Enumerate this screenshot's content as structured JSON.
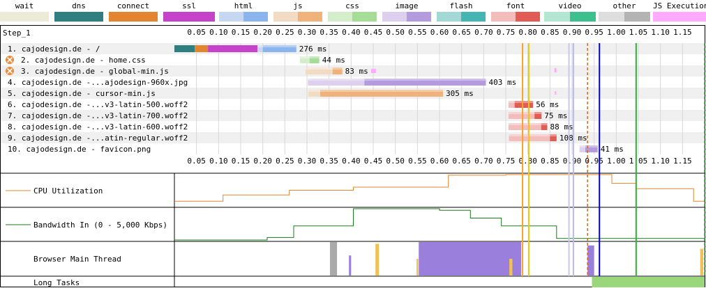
{
  "legend": [
    {
      "label": "wait",
      "colors": [
        "#ecebd7",
        "#ecebd7"
      ]
    },
    {
      "label": "dns",
      "colors": [
        "#2f7f80",
        "#2f7f80"
      ]
    },
    {
      "label": "connect",
      "colors": [
        "#e38431",
        "#e38431"
      ]
    },
    {
      "label": "ssl",
      "colors": [
        "#c543c8",
        "#c543c8"
      ]
    },
    {
      "label": "html",
      "colors": [
        "#c6d7f1",
        "#8db5ed"
      ]
    },
    {
      "label": "js",
      "colors": [
        "#f1dbc2",
        "#eeb27a"
      ]
    },
    {
      "label": "css",
      "colors": [
        "#d4eecb",
        "#a5dd97"
      ]
    },
    {
      "label": "image",
      "colors": [
        "#dcd0ee",
        "#b39bdd"
      ]
    },
    {
      "label": "flash",
      "colors": [
        "#a3d8d7",
        "#45b5b3"
      ]
    },
    {
      "label": "font",
      "colors": [
        "#f3bdbb",
        "#e25c56"
      ]
    },
    {
      "label": "video",
      "colors": [
        "#b3e7d1",
        "#3dbf8e"
      ]
    },
    {
      "label": "other",
      "colors": [
        "#dddddd",
        "#b4b4b4"
      ]
    },
    {
      "label": "JS Execution",
      "colors": [
        "#ffaaff",
        "#ffaaff"
      ]
    }
  ],
  "chart_data": {
    "type": "waterfall",
    "step_label": "Step_1",
    "x_unit": "s",
    "x_range": [
      0,
      1.2
    ],
    "ticks": [
      "0.05",
      "0.10",
      "0.15",
      "0.20",
      "0.25",
      "0.30",
      "0.35",
      "0.40",
      "0.45",
      "0.50",
      "0.55",
      "0.60",
      "0.65",
      "0.70",
      "0.75",
      "0.80",
      "0.85",
      "0.90",
      "0.95",
      "1.00",
      "1.05",
      "1.10",
      "1.15"
    ],
    "requests": [
      {
        "label": "1. cajodesign.de - /",
        "type": "html",
        "blocked": false,
        "phases": {
          "dns": [
            0.0,
            0.046
          ],
          "connect": [
            0.046,
            0.076
          ],
          "ssl": [
            0.076,
            0.188
          ]
        },
        "start": 0.0,
        "ttfb_end": 0.2,
        "end": 0.276,
        "duration_label": "276 ms"
      },
      {
        "label": "2. cajodesign.de - home.css",
        "type": "css",
        "blocked": true,
        "start": 0.284,
        "ttfb_end": 0.306,
        "end": 0.328,
        "duration_label": "44 ms"
      },
      {
        "label": "3. cajodesign.de - global-min.js",
        "type": "js",
        "blocked": true,
        "start": 0.297,
        "ttfb_end": 0.358,
        "end": 0.38,
        "duration_label": "83 ms",
        "js_exec": [
          [
            0.445,
            0.456
          ]
        ]
      },
      {
        "label": "4. cajodesign.de -...ajodesign-960x.jpg",
        "type": "image",
        "blocked": false,
        "start": 0.302,
        "ttfb_end": 0.43,
        "end": 0.705,
        "duration_label": "403 ms"
      },
      {
        "label": "5. cajodesign.de - cursor-min.js",
        "type": "js",
        "blocked": false,
        "start": 0.303,
        "ttfb_end": 0.33,
        "end": 0.608,
        "duration_label": "305 ms"
      },
      {
        "label": "6. cajodesign.de -...v3-latin-500.woff2",
        "type": "font",
        "blocked": false,
        "start": 0.756,
        "ttfb_end": 0.77,
        "end": 0.812,
        "duration_label": "56 ms"
      },
      {
        "label": "7. cajodesign.de -...v3-latin-700.woff2",
        "type": "font",
        "blocked": false,
        "start": 0.756,
        "ttfb_end": 0.815,
        "end": 0.831,
        "duration_label": "75 ms"
      },
      {
        "label": "8. cajodesign.de -...v3-latin-600.woff2",
        "type": "font",
        "blocked": false,
        "start": 0.756,
        "ttfb_end": 0.83,
        "end": 0.844,
        "duration_label": "88 ms"
      },
      {
        "label": "9. cajodesign.de -...atin-regular.woff2",
        "type": "font",
        "blocked": false,
        "start": 0.757,
        "ttfb_end": 0.85,
        "end": 0.865,
        "duration_label": "108 ms"
      },
      {
        "label": "10. cajodesign.de - favicon.png",
        "type": "image",
        "blocked": false,
        "start": 0.917,
        "ttfb_end": 0.93,
        "end": 0.958,
        "duration_label": "41 ms"
      }
    ],
    "markers": [
      {
        "time": 0.788,
        "color": "#f5a623",
        "style": "solid"
      },
      {
        "time": 0.802,
        "color": "#f1c40f",
        "style": "solid"
      },
      {
        "time": 0.893,
        "color": "#c7c7f5",
        "style": "solid"
      },
      {
        "time": 0.903,
        "color": "#b8b8f2",
        "style": "solid"
      },
      {
        "time": 0.935,
        "color": "#d2691e",
        "style": "dashed"
      },
      {
        "time": 0.962,
        "color": "#0000cc",
        "style": "solid"
      },
      {
        "time": 1.045,
        "color": "#2cb32c",
        "style": "solid"
      },
      {
        "time": 1.2,
        "color": "#2cb32c",
        "style": "dashed"
      }
    ],
    "cpu": {
      "label": "CPU Utilization",
      "points": [
        [
          0,
          0.15
        ],
        [
          0.11,
          0.15
        ],
        [
          0.11,
          0.35
        ],
        [
          0.26,
          0.35
        ],
        [
          0.26,
          0.5
        ],
        [
          0.405,
          0.5
        ],
        [
          0.405,
          0.6
        ],
        [
          0.62,
          0.6
        ],
        [
          0.62,
          0.98
        ],
        [
          0.75,
          0.98
        ],
        [
          0.75,
          1.0
        ],
        [
          0.99,
          1.0
        ],
        [
          0.99,
          0.72
        ],
        [
          1.045,
          0.72
        ],
        [
          1.045,
          0.55
        ],
        [
          1.175,
          0.55
        ],
        [
          1.175,
          0.15
        ],
        [
          1.2,
          0.15
        ]
      ]
    },
    "bandwidth": {
      "label": "Bandwidth In (0 - 5,000 Kbps)",
      "points": [
        [
          0,
          0
        ],
        [
          0.21,
          0
        ],
        [
          0.21,
          0.08
        ],
        [
          0.27,
          0.08
        ],
        [
          0.27,
          0.45
        ],
        [
          0.405,
          0.45
        ],
        [
          0.405,
          1.0
        ],
        [
          0.6,
          1.0
        ],
        [
          0.6,
          0.95
        ],
        [
          0.67,
          0.95
        ],
        [
          0.67,
          0.7
        ],
        [
          0.74,
          0.7
        ],
        [
          0.74,
          0.45
        ],
        [
          0.865,
          0.45
        ],
        [
          0.865,
          0.05
        ],
        [
          1.2,
          0.05
        ]
      ]
    },
    "main_thread": {
      "label": "Browser Main Thread",
      "blocks": [
        {
          "from": 0.352,
          "to": 0.368,
          "height": 1.0,
          "color": "#aaaaaa"
        },
        {
          "from": 0.395,
          "to": 0.4,
          "height": 0.6,
          "color": "#9b7fdc"
        },
        {
          "from": 0.455,
          "to": 0.463,
          "height": 0.95,
          "color": "#f1c057"
        },
        {
          "from": 0.548,
          "to": 0.552,
          "height": 0.5,
          "color": "#f1c057"
        },
        {
          "from": 0.562,
          "to": 0.568,
          "height": 0.55,
          "color": "#9b7fdc"
        },
        {
          "from": 0.712,
          "to": 0.72,
          "height": 0.45,
          "color": "#9b7fdc"
        },
        {
          "from": 0.758,
          "to": 0.765,
          "height": 0.5,
          "color": "#f1c057"
        },
        {
          "from": 0.935,
          "to": 0.95,
          "height": 0.9,
          "color": "#9b7fdc"
        },
        {
          "from": 1.19,
          "to": 1.197,
          "height": 0.8,
          "color": "#f1c057"
        }
      ],
      "hump": {
        "from": 0.553,
        "to": 0.785,
        "color": "#9b7fdc"
      }
    },
    "long_tasks": {
      "label": "Long Tasks",
      "spans": [
        [
          0.945,
          1.2
        ]
      ],
      "color": "#9ad77a"
    }
  }
}
